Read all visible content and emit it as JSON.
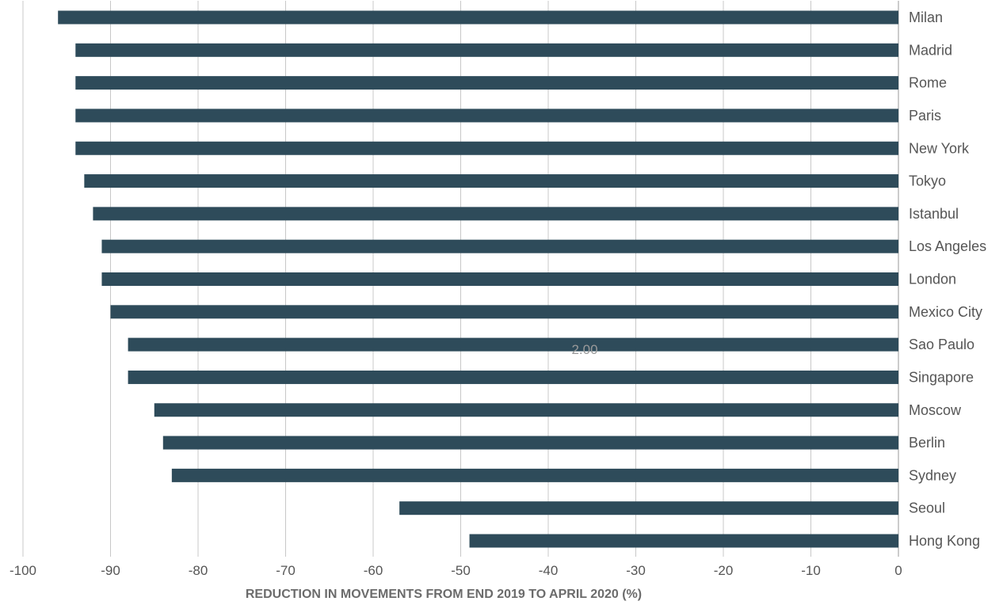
{
  "chart_data": {
    "type": "bar",
    "orientation": "horizontal",
    "xlabel": "REDUCTION IN MOVEMENTS FROM END 2019 TO APRIL 2020 (%)",
    "xlim": [
      -100,
      0
    ],
    "xticks": [
      -100,
      -90,
      -80,
      -70,
      -60,
      -50,
      -40,
      -30,
      -20,
      -10,
      0
    ],
    "grid": true,
    "bar_color": "#2e4b5a",
    "categories": [
      "Milan",
      "Madrid",
      "Rome",
      "Paris",
      "New York",
      "Tokyo",
      "Istanbul",
      "Los Angeles",
      "London",
      "Mexico City",
      "Sao Paulo",
      "Singapore",
      "Moscow",
      "Berlin",
      "Sydney",
      "Seoul",
      "Hong Kong"
    ],
    "values": [
      -96,
      -94,
      -94,
      -94,
      -94,
      -93,
      -92,
      -91,
      -91,
      -90,
      -88,
      -88,
      -85,
      -84,
      -83,
      -57,
      -49
    ],
    "annotation": "2.00"
  }
}
